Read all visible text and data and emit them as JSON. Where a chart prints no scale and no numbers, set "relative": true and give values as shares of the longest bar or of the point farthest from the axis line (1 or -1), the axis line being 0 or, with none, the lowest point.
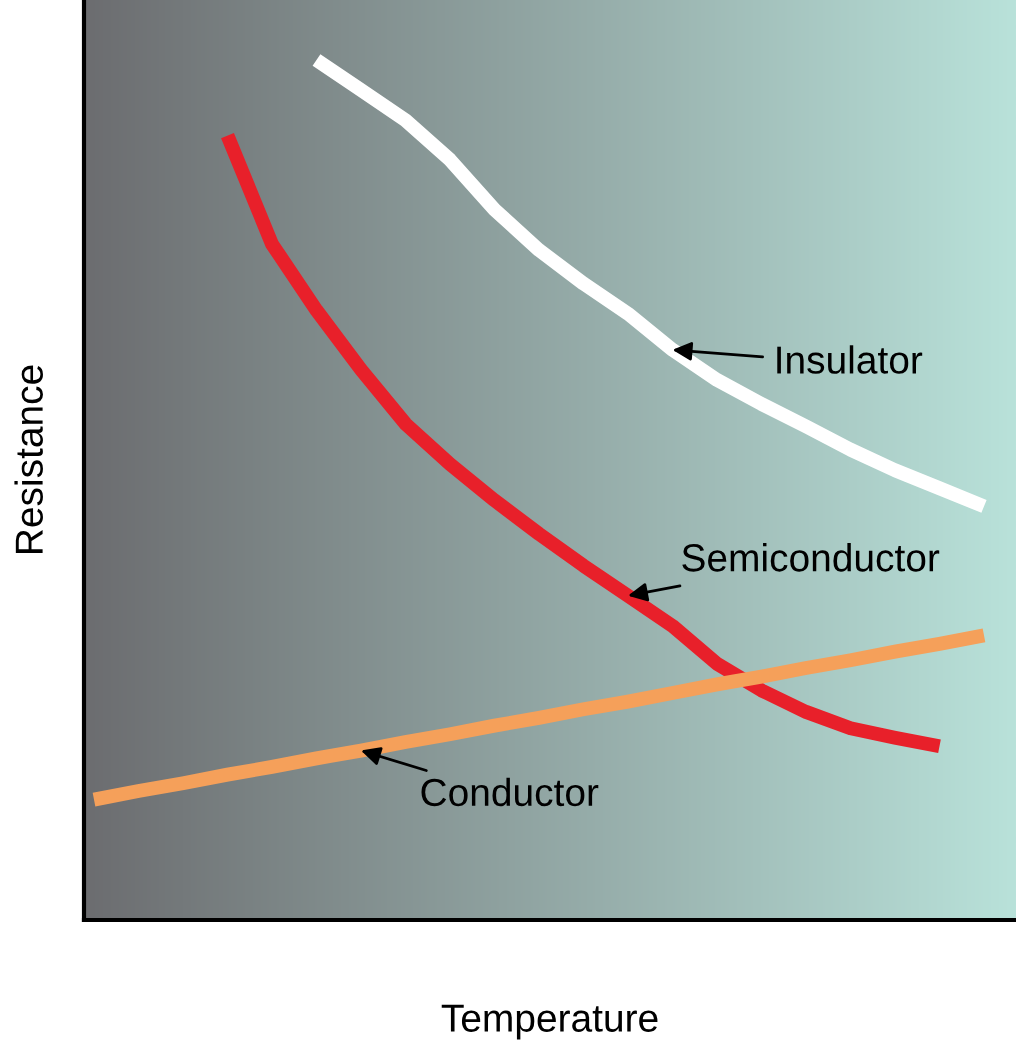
{
  "chart_data": {
    "type": "line",
    "relative": true,
    "xlabel": "Temperature",
    "ylabel": "Resistance",
    "categories": [
      null,
      null,
      null,
      null,
      null,
      null,
      null,
      null,
      null,
      null,
      null,
      null,
      null,
      null,
      null,
      null,
      null,
      null,
      null,
      null,
      null
    ],
    "series": [
      {
        "name": "Insulator",
        "color": "#ffffff",
        "values": [
          null,
          null,
          null,
          null,
          null,
          1,
          0.965,
          0.93,
          0.884,
          0.826,
          0.779,
          0.74,
          0.705,
          0.663,
          0.628,
          0.6,
          0.574,
          0.547,
          0.523,
          0.502,
          0.481
        ]
      },
      {
        "name": "Semiconductor",
        "color": "#e8202a",
        "values": [
          null,
          null,
          null,
          0.912,
          0.786,
          0.709,
          0.64,
          0.577,
          0.53,
          0.488,
          0.449,
          0.412,
          0.377,
          0.342,
          0.298,
          0.267,
          0.242,
          0.223,
          0.212,
          0.202,
          null
        ]
      },
      {
        "name": "Conductor",
        "color": "#f5a05a",
        "values": [
          0.14,
          0.15,
          0.159,
          0.169,
          0.178,
          0.188,
          0.197,
          0.207,
          0.216,
          0.226,
          0.235,
          0.245,
          0.254,
          0.264,
          0.274,
          0.283,
          0.293,
          0.302,
          0.312,
          0.321,
          0.331
        ]
      }
    ]
  }
}
